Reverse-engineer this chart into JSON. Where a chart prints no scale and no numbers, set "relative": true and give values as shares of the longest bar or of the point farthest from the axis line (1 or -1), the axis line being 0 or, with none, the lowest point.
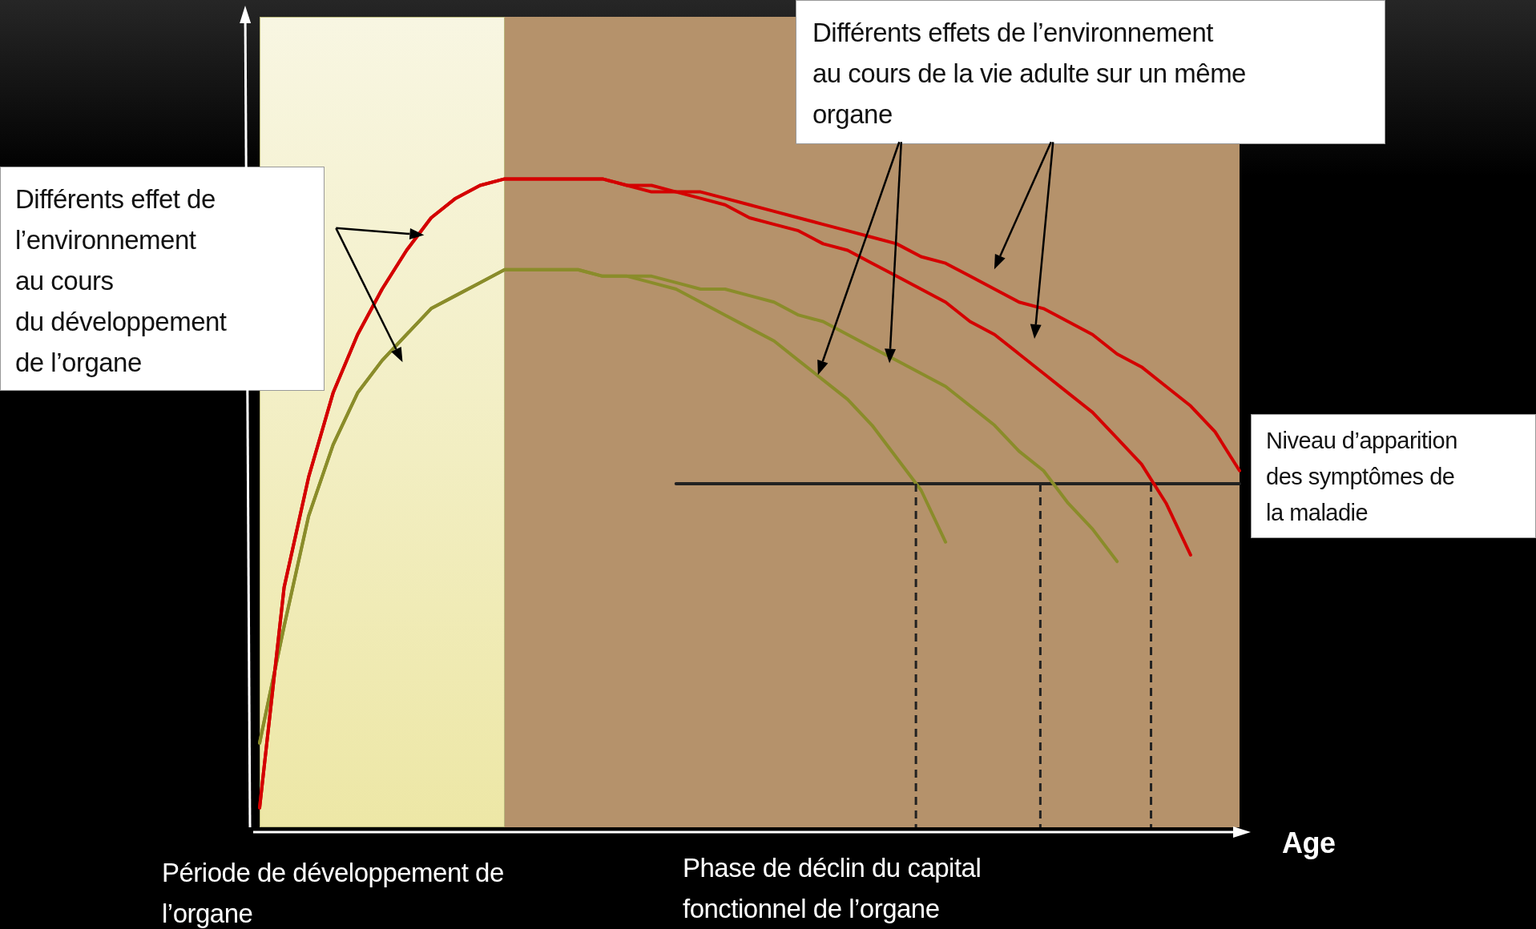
{
  "chart_data": {
    "type": "line",
    "relative": true,
    "xlabel": "Age",
    "categories": [
      null,
      null,
      null,
      null,
      null,
      null,
      null,
      null,
      null,
      null,
      null,
      null,
      null,
      null,
      null,
      null,
      null,
      null,
      null,
      null,
      null,
      null,
      null,
      null,
      null,
      null,
      null,
      null,
      null,
      null,
      null,
      null,
      null,
      null,
      null,
      null,
      null,
      null,
      null,
      null,
      null
    ],
    "series": [
      {
        "color": "#d40000",
        "values": [
          0.03,
          0.37,
          0.54,
          0.67,
          0.76,
          0.83,
          0.89,
          0.94,
          0.97,
          0.99,
          1.0,
          1.0,
          1.0,
          1.0,
          1.0,
          0.99,
          0.99,
          0.98,
          0.98,
          0.97,
          0.96,
          0.95,
          0.94,
          0.93,
          0.92,
          0.91,
          0.9,
          0.88,
          0.87,
          0.85,
          0.83,
          0.81,
          0.8,
          0.78,
          0.76,
          0.73,
          0.71,
          0.68,
          0.65,
          0.61,
          0.55
        ]
      },
      {
        "color": "#d40000",
        "values": [
          0.03,
          0.37,
          0.54,
          0.67,
          0.76,
          0.83,
          0.89,
          0.94,
          0.97,
          0.99,
          1.0,
          1.0,
          1.0,
          1.0,
          1.0,
          0.99,
          0.98,
          0.98,
          0.97,
          0.96,
          0.94,
          0.93,
          0.92,
          0.9,
          0.89,
          0.87,
          0.85,
          0.83,
          0.81,
          0.78,
          0.76,
          0.73,
          0.7,
          0.67,
          0.64,
          0.6,
          0.56,
          0.5,
          0.42,
          null,
          null
        ]
      },
      {
        "color": "#8a8c2a",
        "values": [
          0.13,
          0.31,
          0.48,
          0.59,
          0.67,
          0.72,
          0.76,
          0.8,
          0.82,
          0.84,
          0.86,
          0.86,
          0.86,
          0.86,
          0.85,
          0.85,
          0.85,
          0.84,
          0.83,
          0.83,
          0.82,
          0.81,
          0.79,
          0.78,
          0.76,
          0.74,
          0.72,
          0.7,
          0.68,
          0.65,
          0.62,
          0.58,
          0.55,
          0.5,
          0.46,
          0.41,
          null,
          null,
          null,
          null,
          null
        ]
      },
      {
        "color": "#8a8c2a",
        "values": [
          0.13,
          0.31,
          0.48,
          0.59,
          0.67,
          0.72,
          0.76,
          0.8,
          0.82,
          0.84,
          0.86,
          0.86,
          0.86,
          0.86,
          0.85,
          0.85,
          0.84,
          0.83,
          0.81,
          0.79,
          0.77,
          0.75,
          0.72,
          0.69,
          0.66,
          0.62,
          0.57,
          0.52,
          0.44,
          null,
          null,
          null,
          null,
          null,
          null,
          null,
          null,
          null,
          null,
          null,
          null
        ]
      },
      {
        "color": "#222222",
        "values": [
          null,
          null,
          null,
          null,
          null,
          null,
          null,
          null,
          null,
          null,
          null,
          null,
          null,
          null,
          null,
          null,
          null,
          0.53,
          0.53,
          0.53,
          0.53,
          0.53,
          0.53,
          0.53,
          0.53,
          0.53,
          0.53,
          0.53,
          0.53,
          0.53,
          0.53,
          0.53,
          0.53,
          0.53,
          0.53,
          0.53,
          0.53,
          0.53,
          0.53,
          0.53,
          0.53
        ]
      }
    ],
    "annotations": [
      "Différents effet de\nl’environnement\nau cours\ndu développement\nde l’organe",
      "Différents effets de l’environnement\nau cours de la vie adulte sur un même\norgane",
      "Niveau d’apparition\ndes symptômes de\nla maladie",
      "Période de développement de\nl’organe",
      "Phase de déclin du capital\nfonctionnel de l’organe"
    ]
  }
}
